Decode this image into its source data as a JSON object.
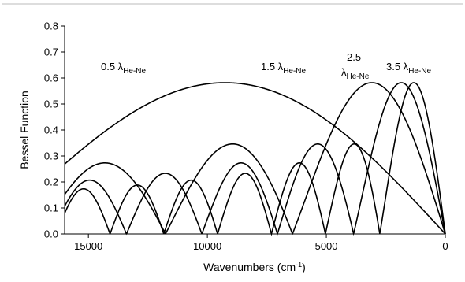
{
  "chart_data": {
    "type": "line",
    "title": "",
    "xlabel": "Wavenumbers (cm",
    "xlabel_sup": "-1",
    "xlabel_suffix": ")",
    "ylabel": "Bessel Function",
    "xlim": [
      16000,
      0
    ],
    "ylim": [
      0,
      0.8
    ],
    "x_reversed": true,
    "xticks": [
      15000,
      10000,
      5000,
      0
    ],
    "yticks": [
      0.0,
      0.1,
      0.2,
      0.3,
      0.4,
      0.5,
      0.6,
      0.7,
      0.8
    ],
    "grid": false,
    "legend": "none",
    "series": [
      {
        "name": "0.5 λHe-Ne",
        "retardation_wavelengths": 0.5
      },
      {
        "name": "1.5 λHe-Ne",
        "retardation_wavelengths": 1.5
      },
      {
        "name": "2.5 λHe-Ne",
        "retardation_wavelengths": 2.5
      },
      {
        "name": "3.5 λHe-Ne",
        "retardation_wavelengths": 3.5
      }
    ],
    "annotations": [
      {
        "id": "a05",
        "main": "0.5 λ",
        "sub": "He-Ne"
      },
      {
        "id": "a15",
        "main": "1.5 λ",
        "sub": "He-Ne"
      },
      {
        "id": "a25_top",
        "main": "2.5",
        "sub": ""
      },
      {
        "id": "a25_bot",
        "main": "λ",
        "sub": "He-Ne"
      },
      {
        "id": "a35",
        "main": "3.5 λ",
        "sub": "He-Ne"
      }
    ]
  }
}
